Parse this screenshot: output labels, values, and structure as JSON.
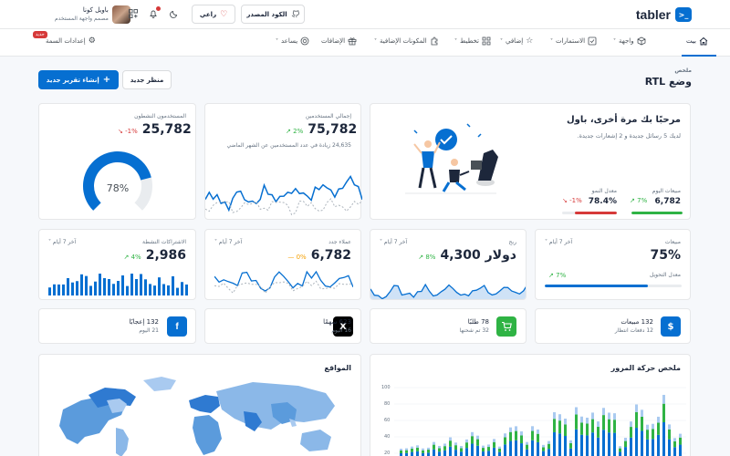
{
  "brand": {
    "name": "tabler",
    "color": "#066fd1"
  },
  "user": {
    "name": "باويل كونا",
    "role": "مصمم واجهة المستخدم"
  },
  "topbar": {
    "source_code": "الكود المصدر",
    "sponsor": "راعي"
  },
  "nav": {
    "home": "بيت",
    "interface": "واجهة",
    "forms": "الاستمارات",
    "extra": "إضافي",
    "layout": "تخطيط",
    "plugins": "المكونات الإضافية",
    "addons": "الإضافات",
    "help": "يساعد",
    "theme": "إعدادات السمة",
    "new_badge": "جديد"
  },
  "page": {
    "pretitle": "ملخص",
    "title": "وضع RTL",
    "new_view": "منظر جديد",
    "new_report": "إنشاء تقرير جديد"
  },
  "welcome": {
    "title": "مرحبًا بك مرة أخرى، باول",
    "subtitle": "لديك 5 رسائل جديدة و 2 إشعارات جديدة.",
    "today_sales_label": "مبيعات اليوم",
    "today_sales_value": "6,782",
    "today_sales_change": "7%",
    "growth_label": "معدل النمو",
    "growth_value": "78.4%",
    "growth_change": "-1%"
  },
  "total_users": {
    "label": "إجمالي المستخدمين",
    "value": "75,782",
    "change": "2%",
    "note": "24,635 زيادة في عدد المستخدمين عن الشهر الماضي"
  },
  "active_users": {
    "label": "المستخدمون النشطون",
    "value": "25,782",
    "change": "-1%",
    "gauge": 0.78,
    "gauge_label": "78%"
  },
  "period": "آخر 7 أيام",
  "sales": {
    "label": "مبيعات",
    "value": "75%",
    "rate_label": "معدل التحويل",
    "rate_change": "7%",
    "rate": 0.75
  },
  "revenue": {
    "label": "ربح",
    "value": "4,300 دولار",
    "change": "8%"
  },
  "new_clients": {
    "label": "عملاء جدد",
    "value": "6,782",
    "change": "0%"
  },
  "active_subs": {
    "label": "الاشتراكات النشطة",
    "value": "2,986",
    "change": "4%"
  },
  "mini": [
    {
      "line1": "132 مبيعات",
      "line2": "12 دفعات انتظار",
      "icon": "$",
      "color": "#066fd1"
    },
    {
      "line1": "78 طلبًا",
      "line2": "32 تم شحنها",
      "icon": "cart-icon",
      "color": "#2fb344"
    },
    {
      "line1": "623 سهمًا",
      "line2": "16 اليوم",
      "icon": "X",
      "color": "#000000"
    },
    {
      "line1": "132 إعجابًا",
      "line2": "21 اليوم",
      "icon": "f",
      "color": "#066fd1"
    }
  ],
  "traffic": {
    "title": "ملخص حركة المرور",
    "y_ticks": [
      "100",
      "80",
      "60",
      "40",
      "20"
    ]
  },
  "locations": {
    "title": "المواقع"
  }
}
